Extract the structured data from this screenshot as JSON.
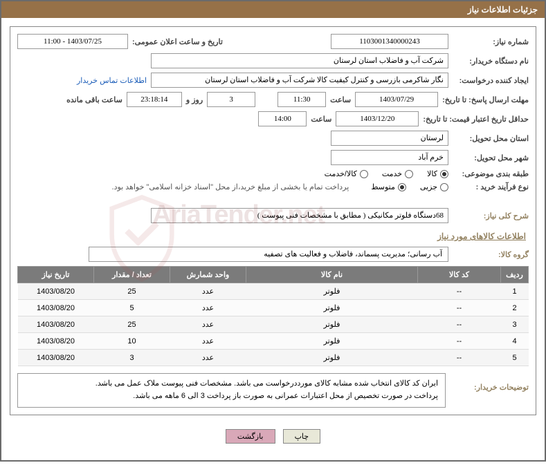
{
  "header_title": "جزئیات اطلاعات نیاز",
  "fields": {
    "need_no_label": "شماره نیاز:",
    "need_no": "1103001340000243",
    "announce_label": "تاریخ و ساعت اعلان عمومی:",
    "announce": "1403/07/25 - 11:00",
    "buyer_label": "نام دستگاه خریدار:",
    "buyer": "شرکت آب و فاضلاب استان لرستان",
    "requester_label": "ایجاد کننده درخواست:",
    "requester": "نگار شاکرمی بازرسی و کنترل کیفیت کالا شرکت آب و فاضلاب استان لرستان",
    "contact_link": "اطلاعات تماس خریدار",
    "deadline_label": "مهلت ارسال پاسخ: تا تاریخ:",
    "deadline_date": "1403/07/29",
    "time_label": "ساعت",
    "deadline_time": "11:30",
    "days": "3",
    "days_label": "روز و",
    "countdown": "23:18:14",
    "countdown_label": "ساعت باقی مانده",
    "validity_label": "حداقل تاریخ اعتبار قیمت: تا تاریخ:",
    "validity_date": "1403/12/20",
    "validity_time": "14:00",
    "province_label": "استان محل تحویل:",
    "province": "لرستان",
    "city_label": "شهر محل تحویل:",
    "city": "خرم آباد",
    "topic_label": "طبقه بندی موضوعی:",
    "kala": "کالا",
    "khedmat": "خدمت",
    "kala_khedmat": "کالا/خدمت",
    "process_label": "نوع فرآیند خرید :",
    "jozi": "جزیی",
    "motavaset": "متوسط",
    "payment_note": "پرداخت تمام یا بخشی از مبلغ خرید،از محل \"اسناد خزانه اسلامی\" خواهد بود."
  },
  "desc_label": "شرح کلی نیاز:",
  "desc_text": "68دستگاه فلوتر مکانیکی ( مطابق با مشخصات فنی پیوست )",
  "group_section": "اطلاعات کالاهای مورد نیاز",
  "group_label": "گروه کالا:",
  "group_text": "آب رسانی؛ مدیریت پسماند، فاضلاب و فعالیت های تصفیه",
  "columns": {
    "row": "ردیف",
    "code": "کد کالا",
    "name": "نام کالا",
    "unit": "واحد شمارش",
    "qty": "تعداد / مقدار",
    "date": "تاریخ نیاز"
  },
  "rows": [
    {
      "n": "1",
      "code": "--",
      "name": "فلوتر",
      "unit": "عدد",
      "qty": "25",
      "date": "1403/08/20"
    },
    {
      "n": "2",
      "code": "--",
      "name": "فلوتر",
      "unit": "عدد",
      "qty": "5",
      "date": "1403/08/20"
    },
    {
      "n": "3",
      "code": "--",
      "name": "فلوتر",
      "unit": "عدد",
      "qty": "25",
      "date": "1403/08/20"
    },
    {
      "n": "4",
      "code": "--",
      "name": "فلوتر",
      "unit": "عدد",
      "qty": "10",
      "date": "1403/08/20"
    },
    {
      "n": "5",
      "code": "--",
      "name": "فلوتر",
      "unit": "عدد",
      "qty": "3",
      "date": "1403/08/20"
    }
  ],
  "buyer_desc_label": "توضیحات خریدار:",
  "buyer_desc": "ایران کد کالای انتخاب شده مشابه کالای مورددرخواست می باشد. مشخصات فنی پیوست ملاک عمل می باشد.\nپرداخت در صورت تخصیص از محل اعتبارات عمرانی  به صورت باز پرداخت  3 الی 6 ماهه می باشد.",
  "btn_print": "چاپ",
  "btn_back": "بازگشت",
  "colors": {
    "header_bg": "#967148",
    "th_bg": "#7b7b7b",
    "section": "#938261",
    "btn_back": "#d9a8b8"
  }
}
